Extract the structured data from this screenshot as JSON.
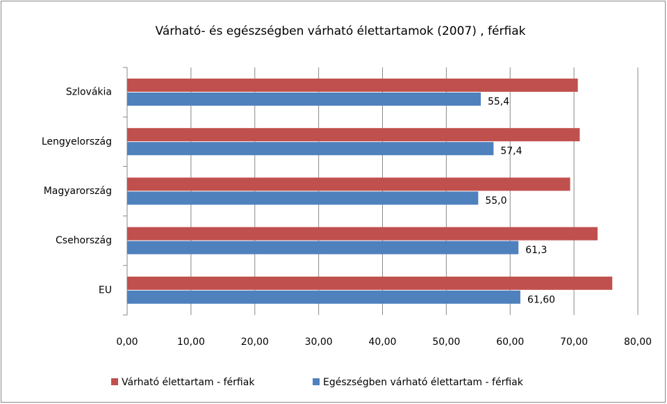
{
  "chart_data": {
    "type": "bar",
    "orientation": "horizontal",
    "title": "Várható- és egészségben várható élettartamok  (2007) , férfiak",
    "categories": [
      "Szlovákia",
      "Lengyelország",
      "Magyarország",
      "Csehország",
      "EU"
    ],
    "series": [
      {
        "name": "Várható élettartam - férfiak",
        "color": "#c0504d",
        "values": [
          70.6,
          70.9,
          69.4,
          73.7,
          76.0
        ]
      },
      {
        "name": "Egészségben várható élettartam - férfiak",
        "color": "#4f81bd",
        "values": [
          55.4,
          57.4,
          55.0,
          61.3,
          61.6
        ],
        "value_labels": [
          "55,4",
          "57,4",
          "55,0",
          "61,3",
          "61,60"
        ]
      }
    ],
    "xlim": [
      0,
      80
    ],
    "xticks": [
      {
        "value": 0,
        "label": "0,00"
      },
      {
        "value": 10,
        "label": "10,00"
      },
      {
        "value": 20,
        "label": "20,00"
      },
      {
        "value": 30,
        "label": "30,00"
      },
      {
        "value": 40,
        "label": "40,00"
      },
      {
        "value": 50,
        "label": "50,00"
      },
      {
        "value": 60,
        "label": "60,00"
      },
      {
        "value": 70,
        "label": "70,00"
      },
      {
        "value": 80,
        "label": "80,00"
      }
    ],
    "grid": true,
    "legend": "bottom"
  }
}
